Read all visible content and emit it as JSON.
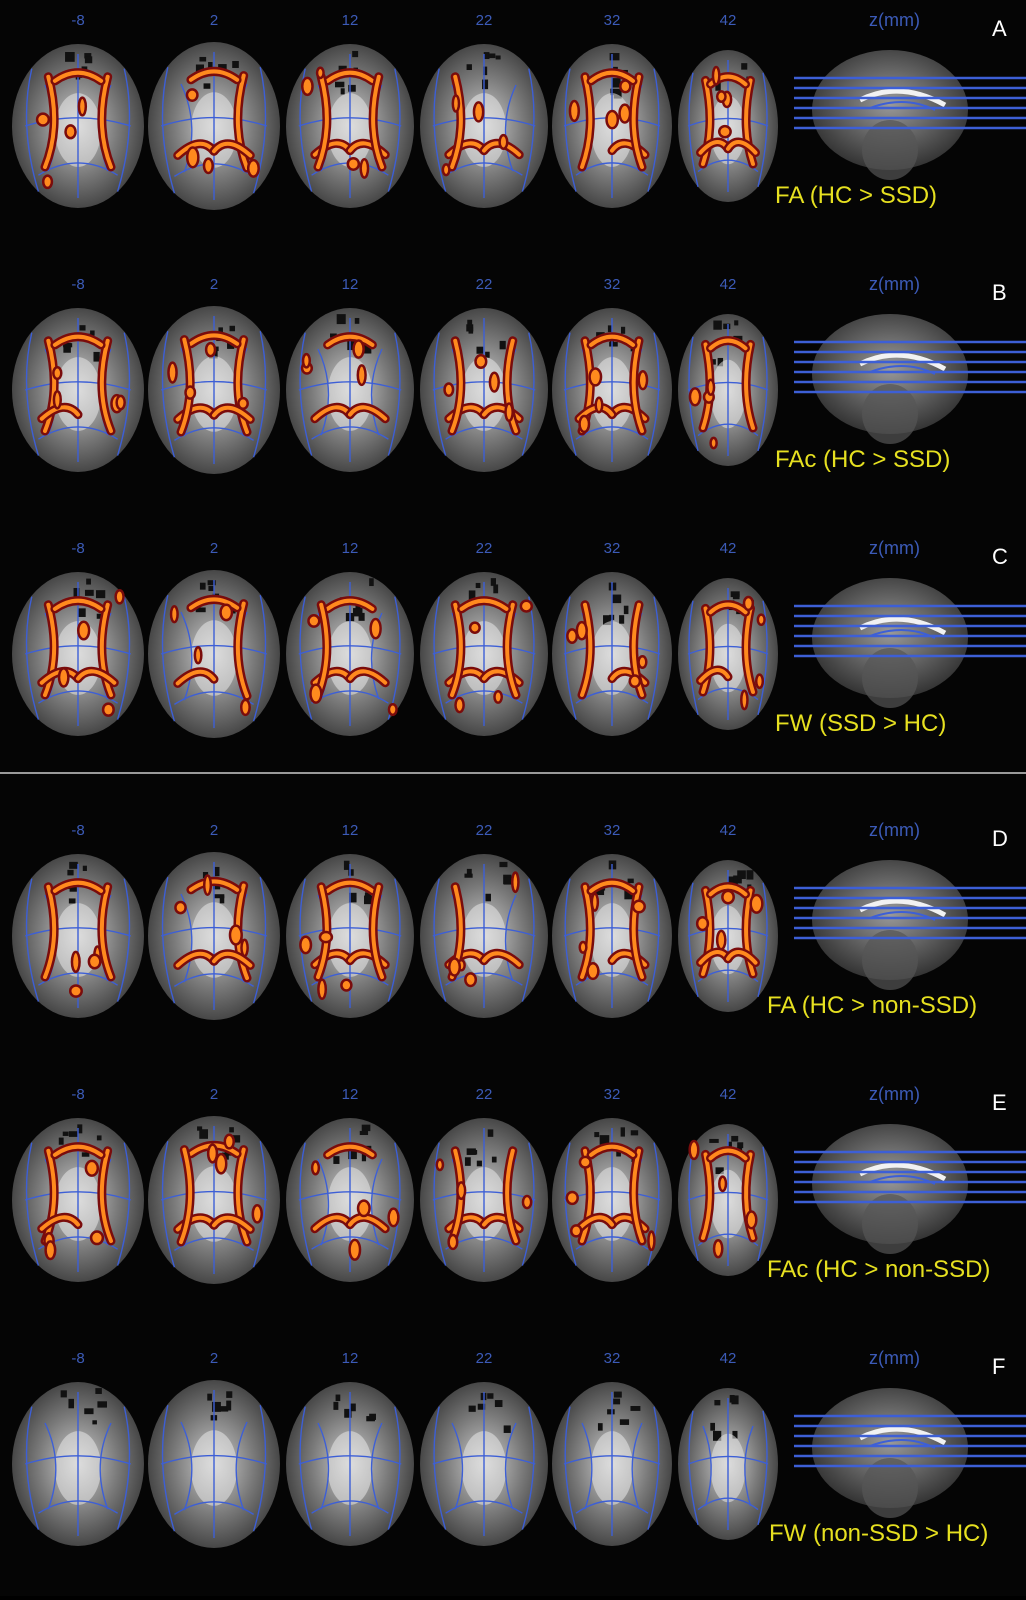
{
  "slice_labels": [
    "-8",
    "2",
    "12",
    "22",
    "32",
    "42"
  ],
  "z_axis_label": "z(mm)",
  "panels": [
    {
      "letter": "A",
      "caption": "FA (HC > SSD)",
      "blobs": "strong"
    },
    {
      "letter": "B",
      "caption": "FAc (HC > SSD)",
      "blobs": "strong"
    },
    {
      "letter": "C",
      "caption": "FW (SSD > HC)",
      "blobs": "strong"
    },
    {
      "letter": "D",
      "caption": "FA (HC > non-SSD)",
      "blobs": "strong"
    },
    {
      "letter": "E",
      "caption": "FAc (HC > non-SSD)",
      "blobs": "strong"
    },
    {
      "letter": "F",
      "caption": "FW (non-SSD > HC)",
      "blobs": "none"
    }
  ],
  "colors": {
    "background": "#050505",
    "slice_label": "#3c5bb8",
    "caption": "#e6e020",
    "letter": "#ffffff",
    "skeleton": "#3d5fd6",
    "blob_outer": "#7a0c0c",
    "blob_inner": "#ff8a1e"
  }
}
